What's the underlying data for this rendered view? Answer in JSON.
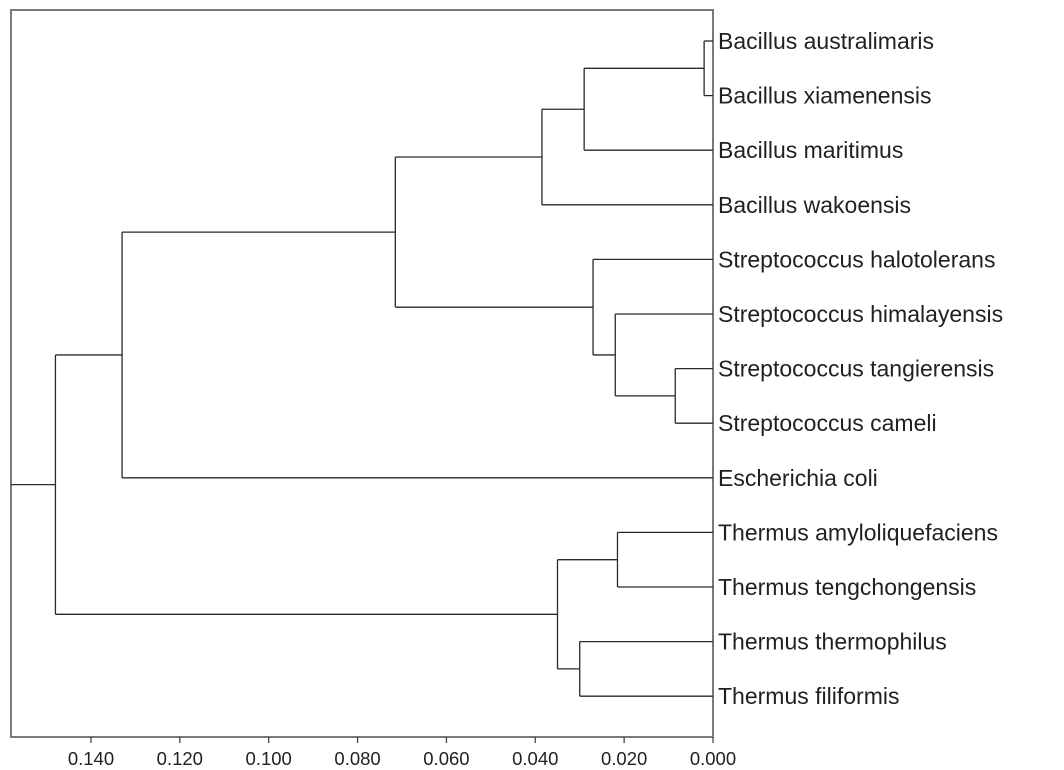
{
  "tree": {
    "axis": {
      "direction": "reversed",
      "ticks": [
        "0.140",
        "0.120",
        "0.100",
        "0.080",
        "0.060",
        "0.040",
        "0.020",
        "0.000"
      ],
      "tick_values": [
        0.14,
        0.12,
        0.1,
        0.08,
        0.06,
        0.04,
        0.02,
        0.0
      ],
      "domain": [
        0.158,
        0.0
      ]
    },
    "leaves": [
      "Bacillus  australimaris",
      "Bacillus  xiamenensis",
      "Bacillus  maritimus",
      "Bacillus  wakoensis",
      "Streptococcus  halotolerans",
      "Streptococcus  himalayensis",
      "Streptococcus  tangierensis",
      "Streptococcus  cameli",
      "Escherichia  coli",
      "Thermus amyloliquefaciens",
      "Thermus tengchongensis",
      "Thermus thermophilus",
      "Thermus filiformis"
    ],
    "clusters": [
      {
        "id": "n1",
        "children": [
          0,
          1
        ],
        "height": 0.002
      },
      {
        "id": "n2",
        "children": [
          "n1",
          2
        ],
        "height": 0.029
      },
      {
        "id": "n3",
        "children": [
          "n2",
          3
        ],
        "height": 0.0385
      },
      {
        "id": "n4",
        "children": [
          6,
          7
        ],
        "height": 0.0085
      },
      {
        "id": "n5",
        "children": [
          5,
          "n4"
        ],
        "height": 0.022
      },
      {
        "id": "n6",
        "children": [
          4,
          "n5"
        ],
        "height": 0.027
      },
      {
        "id": "n7",
        "children": [
          "n3",
          "n6"
        ],
        "height": 0.0715
      },
      {
        "id": "n8",
        "children": [
          "n7",
          8
        ],
        "height": 0.133
      },
      {
        "id": "n9",
        "children": [
          9,
          10
        ],
        "height": 0.0215
      },
      {
        "id": "n10",
        "children": [
          11,
          12
        ],
        "height": 0.03
      },
      {
        "id": "n11",
        "children": [
          "n9",
          "n10"
        ],
        "height": 0.035
      },
      {
        "id": "n12",
        "children": [
          "n8",
          "n11"
        ],
        "height": 0.148
      }
    ],
    "colors": {
      "line": "#2a2a2a",
      "frame": "#7a7a7a",
      "text": "#231f20"
    }
  }
}
